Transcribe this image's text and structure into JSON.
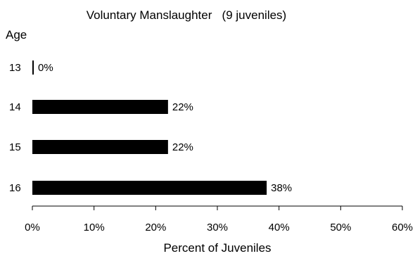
{
  "chart_data": {
    "type": "bar",
    "orientation": "horizontal",
    "title": "Voluntary Manslaughter   (9 juveniles)",
    "ylabel": "Age",
    "xlabel": "Percent of Juveniles",
    "categories": [
      "13",
      "14",
      "15",
      "16"
    ],
    "values": [
      0,
      22,
      22,
      38
    ],
    "value_labels": [
      "0%",
      "22%",
      "22%",
      "38%"
    ],
    "xlim": [
      0,
      60
    ],
    "x_ticks": [
      0,
      10,
      20,
      30,
      40,
      50,
      60
    ],
    "x_tick_labels": [
      "0%",
      "10%",
      "20%",
      "30%",
      "40%",
      "50%",
      "60%"
    ],
    "bar_color": "#000000",
    "grid": false,
    "legend": "none"
  }
}
